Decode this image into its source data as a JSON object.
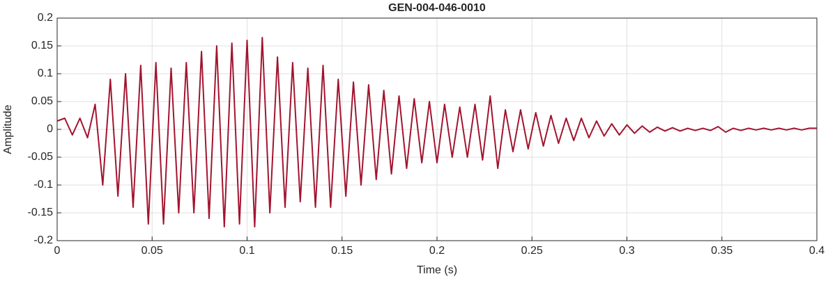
{
  "chart_data": {
    "type": "line",
    "title": "GEN-004-046-0010",
    "x_label": "Time (s)",
    "y_label": "Amplitude",
    "xlim": [
      0,
      0.4
    ],
    "ylim": [
      -0.2,
      0.2
    ],
    "xticks": [
      0,
      0.05,
      0.1,
      0.15,
      0.2,
      0.25,
      0.3,
      0.35,
      0.4
    ],
    "yticks": [
      -0.2,
      -0.15,
      -0.1,
      -0.05,
      0,
      0.05,
      0.1,
      0.15,
      0.2
    ],
    "grid": true,
    "x": [
      0,
      0.004,
      0.008,
      0.012,
      0.016,
      0.02,
      0.024,
      0.028,
      0.032,
      0.036,
      0.04,
      0.044,
      0.048,
      0.052,
      0.056,
      0.06,
      0.064,
      0.068,
      0.072,
      0.076,
      0.08,
      0.084,
      0.088,
      0.092,
      0.096,
      0.1,
      0.104,
      0.108,
      0.112,
      0.116,
      0.12,
      0.124,
      0.128,
      0.132,
      0.136,
      0.14,
      0.144,
      0.148,
      0.152,
      0.156,
      0.16,
      0.164,
      0.168,
      0.172,
      0.176,
      0.18,
      0.184,
      0.188,
      0.192,
      0.196,
      0.2,
      0.204,
      0.208,
      0.212,
      0.216,
      0.22,
      0.224,
      0.228,
      0.232,
      0.236,
      0.24,
      0.244,
      0.248,
      0.252,
      0.256,
      0.26,
      0.264,
      0.268,
      0.272,
      0.276,
      0.28,
      0.284,
      0.288,
      0.292,
      0.296,
      0.3,
      0.304,
      0.308,
      0.312,
      0.316,
      0.32,
      0.324,
      0.328,
      0.332,
      0.336,
      0.34,
      0.344,
      0.348,
      0.352,
      0.356,
      0.36,
      0.364,
      0.368,
      0.372,
      0.376,
      0.38,
      0.384,
      0.388,
      0.392,
      0.396,
      0.4
    ],
    "series": [
      {
        "name": "Amplitude",
        "color": "#a2142f",
        "values": [
          0.015,
          0.02,
          -0.01,
          0.02,
          -0.015,
          0.045,
          -0.1,
          0.09,
          -0.12,
          0.1,
          -0.14,
          0.115,
          -0.17,
          0.12,
          -0.17,
          0.11,
          -0.15,
          0.12,
          -0.15,
          0.14,
          -0.16,
          0.15,
          -0.175,
          0.155,
          -0.17,
          0.16,
          -0.175,
          0.165,
          -0.15,
          0.13,
          -0.14,
          0.12,
          -0.13,
          0.11,
          -0.14,
          0.115,
          -0.14,
          0.09,
          -0.12,
          0.085,
          -0.1,
          0.08,
          -0.09,
          0.07,
          -0.08,
          0.06,
          -0.07,
          0.055,
          -0.06,
          0.05,
          -0.06,
          0.045,
          -0.05,
          0.04,
          -0.05,
          0.045,
          -0.055,
          0.06,
          -0.07,
          0.035,
          -0.04,
          0.035,
          -0.035,
          0.03,
          -0.03,
          0.025,
          -0.025,
          0.02,
          -0.02,
          0.02,
          -0.015,
          0.015,
          -0.012,
          0.01,
          -0.01,
          0.008,
          -0.007,
          0.006,
          -0.005,
          0.004,
          -0.003,
          0.003,
          -0.003,
          0.002,
          -0.002,
          0.002,
          -0.002,
          0.005,
          -0.005,
          0.002,
          -0.002,
          0.002,
          -0.001,
          0.002,
          -0.001,
          0.002,
          -0.001,
          0.002,
          -0.001,
          0.002,
          0.002
        ]
      }
    ]
  }
}
